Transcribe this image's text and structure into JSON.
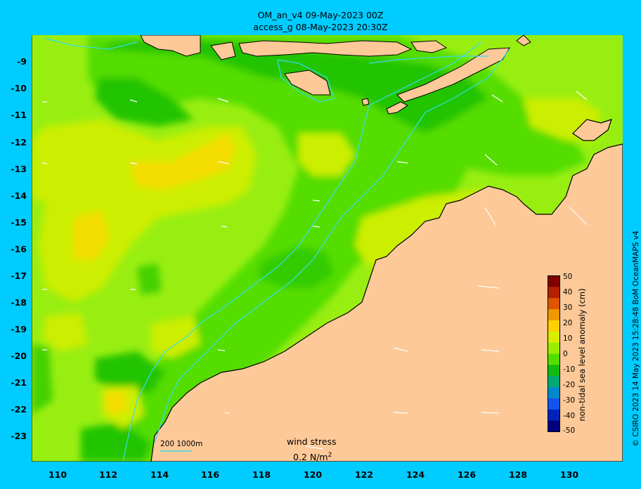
{
  "title_line1": "OM_an_v4  09-May-2023 00Z",
  "title_line2": "access_g 08-May-2023 20:30Z",
  "y_ticks": [
    "-9",
    "-10",
    "-11",
    "-12",
    "-13",
    "-14",
    "-15",
    "-16",
    "-17",
    "-18",
    "-19",
    "-20",
    "-21",
    "-22",
    "-23"
  ],
  "x_ticks": [
    "110",
    "112",
    "114",
    "116",
    "118",
    "120",
    "122",
    "124",
    "126",
    "128",
    "130"
  ],
  "colorbar": {
    "title": "non-tidal sea level anomaly (cm)",
    "ticks": [
      "50",
      "40",
      "30",
      "20",
      "10",
      "0",
      "-10",
      "-20",
      "-30",
      "-40",
      "-50"
    ],
    "colors": [
      "#800000",
      "#b22200",
      "#dd5500",
      "#ee9900",
      "#ffd000",
      "#d8ee00",
      "#99ee00",
      "#55dd00",
      "#11bb11",
      "#00aa77",
      "#0088cc",
      "#1155ee",
      "#0022bb",
      "#000080"
    ]
  },
  "credit": "© CSIRO 2023  14 May 2023 15:28:48 BoM OceanMAPS v4",
  "scale_label": "200  1000m",
  "wind_stress_label": "wind stress",
  "wind_stress_value": "0.2 N/m",
  "wind_stress_unit_sup": "2",
  "colors": {
    "background": "#00ccff",
    "land": "#fdc998",
    "sea_base": "#99ee11",
    "isobath": "#33ddee"
  }
}
